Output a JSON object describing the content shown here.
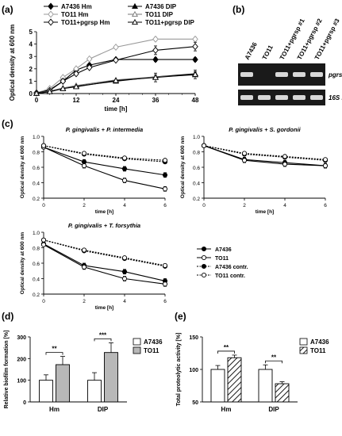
{
  "panel_labels": {
    "a": "(a)",
    "b": "(b)",
    "c": "(c)",
    "d": "(d)",
    "e": "(e)"
  },
  "chart_data": [
    {
      "id": "a",
      "type": "line",
      "xlabel": "time [h]",
      "ylabel": "Optical density at 600 nm",
      "xlim": [
        0,
        48
      ],
      "ylim": [
        0,
        5
      ],
      "xticks": [
        "0",
        "12",
        "24",
        "36",
        "48"
      ],
      "yticks": [
        "0",
        "1",
        "2",
        "3",
        "4",
        "5"
      ],
      "series": [
        {
          "name": "A7436 Hm",
          "color": "#000000",
          "marker": "diamond-filled",
          "dash": false,
          "x": [
            0,
            4,
            8,
            12,
            16,
            24,
            36,
            48
          ],
          "y": [
            0.05,
            0.3,
            1.0,
            1.9,
            2.3,
            2.75,
            2.75,
            2.75
          ]
        },
        {
          "name": "TO11 Hm",
          "color": "#999999",
          "marker": "diamond-open",
          "dash": false,
          "x": [
            0,
            4,
            8,
            12,
            16,
            24,
            36,
            48
          ],
          "y": [
            0.05,
            0.4,
            1.3,
            2.0,
            2.8,
            3.75,
            4.4,
            4.4
          ]
        },
        {
          "name": "TO11+pgrsp Hm",
          "color": "#000000",
          "marker": "diamond-open",
          "dash": false,
          "x": [
            0,
            4,
            8,
            12,
            16,
            24,
            36,
            48
          ],
          "y": [
            0.05,
            0.25,
            1.0,
            1.6,
            2.1,
            2.7,
            3.5,
            3.8
          ]
        },
        {
          "name": "A7436 DIP",
          "color": "#000000",
          "marker": "triangle-filled",
          "dash": false,
          "x": [
            0,
            4,
            8,
            12,
            24,
            36,
            48
          ],
          "y": [
            0.02,
            0.15,
            0.4,
            0.6,
            1.0,
            1.35,
            1.6
          ]
        },
        {
          "name": "TO11 DIP",
          "color": "#777777",
          "marker": "triangle-open",
          "dash": false,
          "x": [
            0,
            4,
            8,
            12,
            24,
            36,
            48
          ],
          "y": [
            0.02,
            0.2,
            0.45,
            0.65,
            1.1,
            1.35,
            1.5
          ]
        },
        {
          "name": "TO11+pgrsp DIP",
          "color": "#000000",
          "marker": "triangle-open",
          "dash": false,
          "x": [
            0,
            4,
            8,
            12,
            24,
            36,
            48
          ],
          "y": [
            0.02,
            0.15,
            0.4,
            0.55,
            1.05,
            1.3,
            1.55
          ]
        }
      ]
    },
    {
      "id": "c1",
      "type": "line",
      "title": "P. gingivalis + P. intermedia",
      "xlabel": "time [h]",
      "ylabel": "Optical density at 600 nm",
      "xlim": [
        0,
        6
      ],
      "ylim": [
        0.2,
        1.0
      ],
      "xticks": [
        "0",
        "2",
        "4",
        "6"
      ],
      "yticks": [
        "0.2",
        "0.4",
        "0.6",
        "0.8",
        "1.0"
      ],
      "series": [
        {
          "name": "A7436",
          "x": [
            0,
            2,
            4,
            6
          ],
          "y": [
            0.86,
            0.67,
            0.58,
            0.5
          ],
          "marker": "filled",
          "dash": false
        },
        {
          "name": "TO11",
          "x": [
            0,
            2,
            4,
            6
          ],
          "y": [
            0.86,
            0.62,
            0.43,
            0.32
          ],
          "marker": "open",
          "dash": false
        },
        {
          "name": "A7436 contr.",
          "x": [
            0,
            2,
            4,
            6
          ],
          "y": [
            0.88,
            0.77,
            0.71,
            0.67
          ],
          "marker": "filled",
          "dash": true
        },
        {
          "name": "TO11 contr.",
          "x": [
            0,
            2,
            4,
            6
          ],
          "y": [
            0.88,
            0.78,
            0.72,
            0.69
          ],
          "marker": "open",
          "dash": true
        }
      ]
    },
    {
      "id": "c2",
      "type": "line",
      "title": "P. gingivalis + S. gordonii",
      "xlabel": "time [h]",
      "ylabel": "Optical density at 600 nm",
      "xlim": [
        0,
        6
      ],
      "ylim": [
        0.2,
        1.0
      ],
      "xticks": [
        "0",
        "2",
        "4",
        "6"
      ],
      "yticks": [
        "0.2",
        "0.4",
        "0.6",
        "0.8",
        "1.0"
      ],
      "series": [
        {
          "name": "A7436",
          "x": [
            0,
            2,
            4,
            6
          ],
          "y": [
            0.88,
            0.7,
            0.66,
            0.62
          ],
          "marker": "filled",
          "dash": false
        },
        {
          "name": "TO11",
          "x": [
            0,
            2,
            4,
            6
          ],
          "y": [
            0.88,
            0.69,
            0.64,
            0.62
          ],
          "marker": "open",
          "dash": false
        },
        {
          "name": "A7436 contr.",
          "x": [
            0,
            2,
            4,
            6
          ],
          "y": [
            0.88,
            0.77,
            0.73,
            0.69
          ],
          "marker": "filled",
          "dash": true
        },
        {
          "name": "TO11 contr.",
          "x": [
            0,
            2,
            4,
            6
          ],
          "y": [
            0.88,
            0.78,
            0.74,
            0.7
          ],
          "marker": "open",
          "dash": true
        }
      ]
    },
    {
      "id": "c3",
      "type": "line",
      "title": "P. gingivalis + T. forsythia",
      "xlabel": "time [h]",
      "ylabel": "Optical density at 600 nm",
      "xlim": [
        0,
        6
      ],
      "ylim": [
        0.2,
        1.0
      ],
      "xticks": [
        "0",
        "2",
        "4",
        "6"
      ],
      "yticks": [
        "0.2",
        "0.4",
        "0.6",
        "0.8",
        "1.0"
      ],
      "series": [
        {
          "name": "A7436",
          "x": [
            0,
            2,
            4,
            6
          ],
          "y": [
            0.85,
            0.57,
            0.49,
            0.37
          ],
          "marker": "filled",
          "dash": false
        },
        {
          "name": "TO11",
          "x": [
            0,
            2,
            4,
            6
          ],
          "y": [
            0.84,
            0.55,
            0.4,
            0.33
          ],
          "marker": "open",
          "dash": false
        },
        {
          "name": "A7436 contr.",
          "x": [
            0,
            2,
            4,
            6
          ],
          "y": [
            0.9,
            0.76,
            0.66,
            0.56
          ],
          "marker": "filled",
          "dash": true
        },
        {
          "name": "TO11 contr.",
          "x": [
            0,
            2,
            4,
            6
          ],
          "y": [
            0.9,
            0.77,
            0.67,
            0.57
          ],
          "marker": "open",
          "dash": true
        }
      ]
    },
    {
      "id": "d",
      "type": "bar",
      "ylabel": "Relative biofilm formation [%]",
      "categories": [
        "Hm",
        "DIP"
      ],
      "ylim": [
        0,
        300
      ],
      "yticks": [
        "0",
        "100",
        "200",
        "300"
      ],
      "series": [
        {
          "name": "A7436",
          "values": [
            100,
            100
          ],
          "errors": [
            25,
            35
          ],
          "fill": "#ffffff"
        },
        {
          "name": "TO11",
          "values": [
            172,
            228
          ],
          "errors": [
            38,
            45
          ],
          "fill": "#b8b8b8"
        }
      ],
      "significance": [
        "**",
        "***"
      ]
    },
    {
      "id": "e",
      "type": "bar",
      "ylabel": "Total proteolytic activity [%]",
      "categories": [
        "Hm",
        "DIP"
      ],
      "ylim": [
        50,
        150
      ],
      "yticks": [
        "50",
        "100",
        "150"
      ],
      "series": [
        {
          "name": "A7436",
          "values": [
            100,
            100
          ],
          "errors": [
            6,
            7
          ],
          "fill": "#ffffff"
        },
        {
          "name": "TO11",
          "values": [
            118,
            78
          ],
          "errors": [
            4,
            3
          ],
          "fill": "hatch"
        }
      ],
      "significance": [
        "**",
        "**"
      ]
    }
  ],
  "gel": {
    "lanes": [
      "A7436",
      "TO11",
      "TO11+pgrsp #1",
      "TO11+pgrsp #2",
      "TO11+pgrsp #3"
    ],
    "bands": [
      "pgrsp",
      "16S rRNA"
    ],
    "band_intensity": [
      [
        1,
        0,
        1,
        1,
        1
      ],
      [
        1,
        1,
        1,
        1,
        1
      ]
    ]
  }
}
